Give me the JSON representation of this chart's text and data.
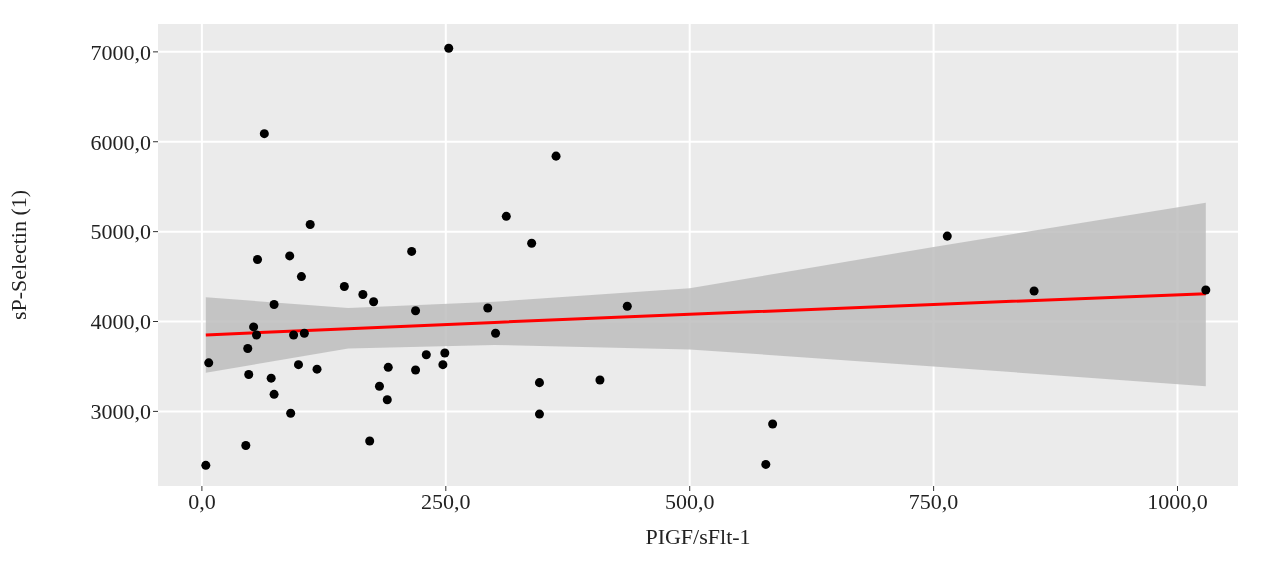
{
  "chart_data": {
    "type": "scatter",
    "xlabel": "PIGF/sFlt-1",
    "ylabel": "sP-Selectin (1)",
    "xlim": [
      -45,
      1062
    ],
    "ylim": [
      2170,
      7310
    ],
    "xticks": [
      {
        "value": 0,
        "label": "0,0"
      },
      {
        "value": 250,
        "label": "250,0"
      },
      {
        "value": 500,
        "label": "500,0"
      },
      {
        "value": 750,
        "label": "750,0"
      },
      {
        "value": 1000,
        "label": "1000,0"
      }
    ],
    "yticks": [
      {
        "value": 3000,
        "label": "3000,0"
      },
      {
        "value": 4000,
        "label": "4000,0"
      },
      {
        "value": 5000,
        "label": "5000,0"
      },
      {
        "value": 6000,
        "label": "6000,0"
      },
      {
        "value": 7000,
        "label": "7000,0"
      }
    ],
    "grid": true,
    "marker": "circle",
    "series": [
      {
        "color": "#000000",
        "x": [
          4,
          7,
          45,
          47,
          48,
          53,
          56,
          57,
          64,
          71,
          74,
          74,
          90,
          91,
          94,
          99,
          102,
          105,
          111,
          118,
          146,
          165,
          172,
          176,
          182,
          190,
          191,
          215,
          219,
          219,
          230,
          247,
          249,
          253,
          293,
          301,
          312,
          338,
          346,
          346,
          363,
          408,
          436,
          578,
          585,
          764,
          853,
          1029
        ],
        "values": [
          2400,
          3540,
          2620,
          3700,
          3410,
          3940,
          3850,
          4690,
          6090,
          3370,
          3190,
          4190,
          4730,
          2980,
          3850,
          3520,
          4500,
          3870,
          5080,
          3470,
          4390,
          4300,
          2670,
          4220,
          3280,
          3130,
          3490,
          4780,
          4120,
          3460,
          3630,
          3520,
          3650,
          7040,
          4150,
          3870,
          5170,
          4870,
          3320,
          2970,
          5840,
          3350,
          4170,
          2410,
          2860,
          4950,
          4340,
          4350
        ]
      },
      {
        "type": "line",
        "color": "#ff0000",
        "line_style": "solid",
        "marker": "none",
        "x": [
          4,
          150,
          300,
          500,
          750,
          1029
        ],
        "values": [
          3850,
          3920,
          3990,
          4080,
          4190,
          4310
        ],
        "lower": [
          3430,
          3700,
          3740,
          3690,
          3500,
          3280
        ],
        "upper": [
          4270,
          4150,
          4220,
          4370,
          4830,
          5320
        ]
      }
    ]
  }
}
